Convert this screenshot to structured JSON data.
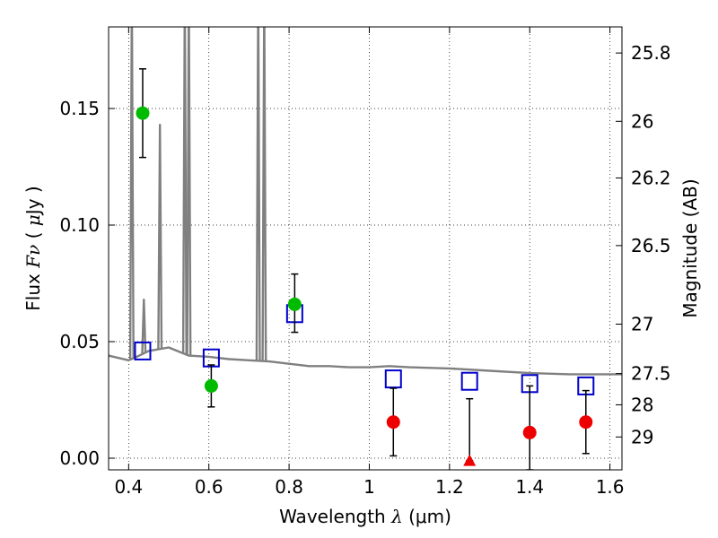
{
  "chart_data": {
    "type": "scatter",
    "title": "",
    "xlabel": "Wavelength  λ (μm)",
    "xlabel_parts": {
      "text": "Wavelength  ",
      "lambda": "λ",
      "unit": " (μm)"
    },
    "ylabel": "Flux  Fν  ( μJy )",
    "ylabel_parts": {
      "text": "Flux  ",
      "fnu": "Fν",
      "open": "  ( ",
      "mu": "μ",
      "close": "Jy )"
    },
    "y2label": "Magnitude (AB)",
    "xlim": [
      0.35,
      1.63
    ],
    "ylim": [
      -0.005,
      0.185
    ],
    "grid": true,
    "x_ticks": [
      {
        "value": 0.4,
        "label": "0.4"
      },
      {
        "value": 0.6,
        "label": "0.6"
      },
      {
        "value": 0.8,
        "label": "0.8"
      },
      {
        "value": 1.0,
        "label": "1"
      },
      {
        "value": 1.2,
        "label": "1.2"
      },
      {
        "value": 1.4,
        "label": "1.4"
      },
      {
        "value": 1.6,
        "label": "1.6"
      }
    ],
    "y_ticks": [
      {
        "value": 0.0,
        "label": "0.00"
      },
      {
        "value": 0.05,
        "label": "0.05"
      },
      {
        "value": 0.1,
        "label": "0.10"
      },
      {
        "value": 0.15,
        "label": "0.15"
      }
    ],
    "mag_ticks": [
      {
        "flux": 0.1738,
        "label": "25.8"
      },
      {
        "flux": 0.1445,
        "label": "26"
      },
      {
        "flux": 0.1202,
        "label": "26.2"
      },
      {
        "flux": 0.0912,
        "label": "26.5"
      },
      {
        "flux": 0.0575,
        "label": "27"
      },
      {
        "flux": 0.0363,
        "label": "27.5"
      },
      {
        "flux": 0.0229,
        "label": "28"
      },
      {
        "flux": 0.0091,
        "label": "29"
      }
    ],
    "series": [
      {
        "marker": "open-square",
        "color": "#0000cc",
        "points": [
          {
            "x": 0.435,
            "y": 0.046
          },
          {
            "x": 0.606,
            "y": 0.043
          },
          {
            "x": 0.814,
            "y": 0.062
          },
          {
            "x": 1.06,
            "y": 0.034
          },
          {
            "x": 1.25,
            "y": 0.033
          },
          {
            "x": 1.4,
            "y": 0.032
          },
          {
            "x": 1.54,
            "y": 0.031
          }
        ]
      },
      {
        "marker": "filled-circle",
        "color": "#00bb00",
        "points": [
          {
            "x": 0.435,
            "y": 0.148,
            "lo": 0.129,
            "hi": 0.167
          },
          {
            "x": 0.606,
            "y": 0.031,
            "lo": 0.022,
            "hi": 0.04
          },
          {
            "x": 0.814,
            "y": 0.066,
            "lo": 0.054,
            "hi": 0.079
          }
        ]
      },
      {
        "marker": "filled-circle",
        "color": "#ee0000",
        "points": [
          {
            "x": 1.06,
            "y": 0.0155,
            "lo": 0.001,
            "hi": 0.03
          },
          {
            "x": 1.4,
            "y": 0.011,
            "lo": -0.005,
            "hi": 0.031
          },
          {
            "x": 1.54,
            "y": 0.0155,
            "lo": 0.002,
            "hi": 0.029
          }
        ]
      },
      {
        "marker": "triangle-up",
        "color": "#ee0000",
        "points": [
          {
            "x": 1.25,
            "y": -0.001,
            "lo": -0.001,
            "hi": 0.0255
          }
        ]
      }
    ],
    "sed_template": {
      "color": "#808080",
      "continuum": [
        [
          0.35,
          0.044
        ],
        [
          0.4,
          0.042
        ],
        [
          0.42,
          0.0435
        ],
        [
          0.45,
          0.046
        ],
        [
          0.5,
          0.0475
        ],
        [
          0.55,
          0.044
        ],
        [
          0.6,
          0.0435
        ],
        [
          0.65,
          0.0425
        ],
        [
          0.7,
          0.042
        ],
        [
          0.75,
          0.0415
        ],
        [
          0.8,
          0.0405
        ],
        [
          0.85,
          0.0395
        ],
        [
          0.9,
          0.0395
        ],
        [
          0.95,
          0.039
        ],
        [
          1.0,
          0.039
        ],
        [
          1.05,
          0.0395
        ],
        [
          1.1,
          0.039
        ],
        [
          1.2,
          0.0385
        ],
        [
          1.3,
          0.0375
        ],
        [
          1.4,
          0.0365
        ],
        [
          1.5,
          0.036
        ],
        [
          1.63,
          0.036
        ]
      ],
      "emission_lines": [
        {
          "x": 0.408,
          "peak": 0.2
        },
        {
          "x": 0.438,
          "peak": 0.068
        },
        {
          "x": 0.478,
          "peak": 0.143
        },
        {
          "x": 0.54,
          "peak": 0.2
        },
        {
          "x": 0.55,
          "peak": 0.2
        },
        {
          "x": 0.723,
          "peak": 0.2
        },
        {
          "x": 0.738,
          "peak": 0.2
        }
      ]
    }
  }
}
